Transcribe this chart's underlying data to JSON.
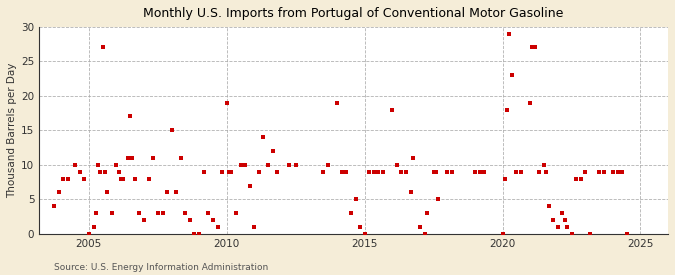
{
  "title": "Monthly U.S. Imports from Portugal of Conventional Motor Gasoline",
  "ylabel": "Thousand Barrels per Day",
  "source": "Source: U.S. Energy Information Administration",
  "outer_bg": "#F5EDD8",
  "plot_bg": "#FFFFFF",
  "marker_color": "#CC0000",
  "marker_size": 9,
  "xlim": [
    2003.2,
    2026.0
  ],
  "ylim": [
    0,
    30
  ],
  "yticks": [
    0,
    5,
    10,
    15,
    20,
    25,
    30
  ],
  "xticks": [
    2005,
    2010,
    2015,
    2020,
    2025
  ],
  "data_points": [
    [
      2003.75,
      4
    ],
    [
      2003.92,
      6
    ],
    [
      2004.08,
      8
    ],
    [
      2004.25,
      8
    ],
    [
      2004.5,
      10
    ],
    [
      2004.67,
      9
    ],
    [
      2004.83,
      8
    ],
    [
      2005.0,
      0
    ],
    [
      2005.17,
      1
    ],
    [
      2005.25,
      3
    ],
    [
      2005.33,
      10
    ],
    [
      2005.42,
      9
    ],
    [
      2005.5,
      27
    ],
    [
      2005.58,
      9
    ],
    [
      2005.67,
      6
    ],
    [
      2005.83,
      3
    ],
    [
      2006.0,
      10
    ],
    [
      2006.08,
      9
    ],
    [
      2006.17,
      8
    ],
    [
      2006.25,
      8
    ],
    [
      2006.42,
      11
    ],
    [
      2006.5,
      17
    ],
    [
      2006.58,
      11
    ],
    [
      2006.67,
      8
    ],
    [
      2006.83,
      3
    ],
    [
      2007.0,
      2
    ],
    [
      2007.17,
      8
    ],
    [
      2007.33,
      11
    ],
    [
      2007.5,
      3
    ],
    [
      2007.67,
      3
    ],
    [
      2007.83,
      6
    ],
    [
      2008.0,
      15
    ],
    [
      2008.17,
      6
    ],
    [
      2008.33,
      11
    ],
    [
      2008.5,
      3
    ],
    [
      2008.67,
      2
    ],
    [
      2008.83,
      0
    ],
    [
      2009.0,
      0
    ],
    [
      2009.17,
      9
    ],
    [
      2009.33,
      3
    ],
    [
      2009.5,
      2
    ],
    [
      2009.67,
      1
    ],
    [
      2009.83,
      9
    ],
    [
      2010.0,
      19
    ],
    [
      2010.08,
      9
    ],
    [
      2010.17,
      9
    ],
    [
      2010.33,
      3
    ],
    [
      2010.5,
      10
    ],
    [
      2010.67,
      10
    ],
    [
      2010.83,
      7
    ],
    [
      2011.0,
      1
    ],
    [
      2011.17,
      9
    ],
    [
      2011.33,
      14
    ],
    [
      2011.5,
      10
    ],
    [
      2011.67,
      12
    ],
    [
      2011.83,
      9
    ],
    [
      2012.25,
      10
    ],
    [
      2012.5,
      10
    ],
    [
      2013.5,
      9
    ],
    [
      2013.67,
      10
    ],
    [
      2014.0,
      19
    ],
    [
      2014.17,
      9
    ],
    [
      2014.33,
      9
    ],
    [
      2014.5,
      3
    ],
    [
      2014.67,
      5
    ],
    [
      2014.83,
      1
    ],
    [
      2015.0,
      0
    ],
    [
      2015.17,
      9
    ],
    [
      2015.33,
      9
    ],
    [
      2015.5,
      9
    ],
    [
      2015.67,
      9
    ],
    [
      2016.0,
      18
    ],
    [
      2016.17,
      10
    ],
    [
      2016.33,
      9
    ],
    [
      2016.5,
      9
    ],
    [
      2016.67,
      6
    ],
    [
      2016.75,
      11
    ],
    [
      2017.0,
      1
    ],
    [
      2017.17,
      0
    ],
    [
      2017.25,
      3
    ],
    [
      2017.5,
      9
    ],
    [
      2017.58,
      9
    ],
    [
      2017.67,
      5
    ],
    [
      2018.0,
      9
    ],
    [
      2018.17,
      9
    ],
    [
      2019.0,
      9
    ],
    [
      2019.17,
      9
    ],
    [
      2019.33,
      9
    ],
    [
      2020.0,
      0
    ],
    [
      2020.08,
      8
    ],
    [
      2020.17,
      18
    ],
    [
      2020.25,
      29
    ],
    [
      2020.33,
      23
    ],
    [
      2020.5,
      9
    ],
    [
      2020.67,
      9
    ],
    [
      2021.0,
      19
    ],
    [
      2021.08,
      27
    ],
    [
      2021.17,
      27
    ],
    [
      2021.33,
      9
    ],
    [
      2021.5,
      10
    ],
    [
      2021.58,
      9
    ],
    [
      2021.67,
      4
    ],
    [
      2021.83,
      2
    ],
    [
      2022.0,
      1
    ],
    [
      2022.17,
      3
    ],
    [
      2022.25,
      2
    ],
    [
      2022.33,
      1
    ],
    [
      2022.5,
      0
    ],
    [
      2022.67,
      8
    ],
    [
      2022.83,
      8
    ],
    [
      2023.0,
      9
    ],
    [
      2023.17,
      0
    ],
    [
      2023.5,
      9
    ],
    [
      2023.67,
      9
    ],
    [
      2024.0,
      9
    ],
    [
      2024.17,
      9
    ],
    [
      2024.33,
      9
    ],
    [
      2024.5,
      0
    ]
  ]
}
